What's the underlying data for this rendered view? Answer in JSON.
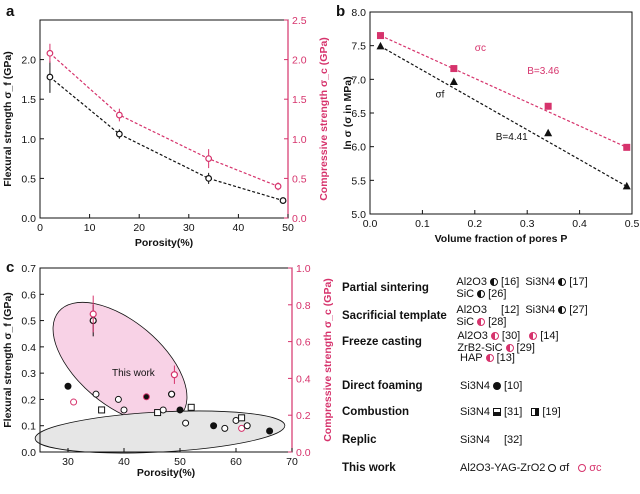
{
  "chart_data": [
    {
      "panel": "a",
      "type": "scatter",
      "xlabel": "Porosity(%)",
      "ylabel_left": "Flexural strength σ_f (GPa)",
      "ylabel_right": "Compressive strength σ_c (GPa)",
      "xlim": [
        0,
        50
      ],
      "ylim_left": [
        0,
        2.5
      ],
      "ylim_right": [
        0,
        2.5
      ],
      "xticks": [
        0,
        10,
        20,
        30,
        40,
        50
      ],
      "yticks_left": [
        0,
        0.5,
        1.0,
        1.5,
        2.0
      ],
      "yticks_right": [
        0,
        0.5,
        1.0,
        1.5,
        2.0,
        2.5
      ],
      "series": [
        {
          "name": "σ_f",
          "color": "#111111",
          "x": [
            2,
            16,
            34,
            49
          ],
          "y": [
            1.78,
            1.06,
            0.5,
            0.22
          ],
          "err": [
            0.2,
            0.06,
            0.07,
            0.02
          ],
          "fit": "dashed"
        },
        {
          "name": "σ_c",
          "color": "#d6336c",
          "x": [
            2,
            16,
            34,
            48
          ],
          "y": [
            2.08,
            1.3,
            0.75,
            0.4
          ],
          "err": [
            0.12,
            0.08,
            0.12,
            0.05
          ],
          "fit": "dashed"
        }
      ]
    },
    {
      "panel": "b",
      "type": "scatter",
      "xlabel": "Volume fraction of pores P",
      "ylabel": "ln σ (σ in MPa)",
      "xlim": [
        0,
        0.5
      ],
      "ylim": [
        5.0,
        8.0
      ],
      "xticks": [
        0.0,
        0.1,
        0.2,
        0.3,
        0.4,
        0.5
      ],
      "yticks": [
        5.0,
        5.5,
        6.0,
        6.5,
        7.0,
        7.5,
        8.0
      ],
      "series": [
        {
          "name": "σ_c",
          "color": "#d6336c",
          "marker": "square",
          "x": [
            0.02,
            0.16,
            0.34,
            0.49
          ],
          "y": [
            7.65,
            7.16,
            6.6,
            5.99
          ],
          "fit_label": "B=3.46"
        },
        {
          "name": "σ_f",
          "color": "#111111",
          "marker": "triangle",
          "x": [
            0.02,
            0.16,
            0.34,
            0.49
          ],
          "y": [
            7.49,
            6.96,
            6.2,
            5.41
          ],
          "fit_label": "B=4.41"
        }
      ],
      "labels": {
        "sigma_c": "σc",
        "sigma_f": "σf",
        "b_c": "B=3.46",
        "b_f": "B=4.41"
      }
    },
    {
      "panel": "c",
      "type": "scatter",
      "xlabel": "Porosity(%)",
      "ylabel_left": "Flexural strength σ_f (GPa)",
      "ylabel_right": "Compressive strength σ_c (GPa)",
      "xlim": [
        25,
        70
      ],
      "ylim_left": [
        0,
        0.7
      ],
      "ylim_right": [
        0,
        1.0
      ],
      "xticks": [
        30,
        40,
        50,
        60,
        70
      ],
      "yticks_left": [
        0,
        0.1,
        0.2,
        0.3,
        0.4,
        0.5,
        0.6,
        0.7
      ],
      "yticks_right": [
        0,
        0.2,
        0.4,
        0.6,
        0.8,
        1.0
      ],
      "annotation": "This work",
      "this_work_f": {
        "x": [
          34.5,
          48.5
        ],
        "y": [
          0.5,
          0.22
        ],
        "err": [
          0.06,
          0.01
        ]
      },
      "this_work_c": {
        "x": [
          34.5,
          49
        ],
        "y": [
          0.75,
          0.42
        ],
        "err": [
          0.1,
          0.05
        ]
      },
      "literature_points": [
        {
          "x": 30,
          "y": 0.25
        },
        {
          "x": 31,
          "y": 0.19
        },
        {
          "x": 35,
          "y": 0.22
        },
        {
          "x": 36,
          "y": 0.16
        },
        {
          "x": 39,
          "y": 0.2
        },
        {
          "x": 40,
          "y": 0.16
        },
        {
          "x": 44,
          "y": 0.21
        },
        {
          "x": 46,
          "y": 0.15
        },
        {
          "x": 47,
          "y": 0.16
        },
        {
          "x": 50,
          "y": 0.16
        },
        {
          "x": 51,
          "y": 0.11
        },
        {
          "x": 52,
          "y": 0.17
        },
        {
          "x": 56,
          "y": 0.1
        },
        {
          "x": 58,
          "y": 0.09
        },
        {
          "x": 60,
          "y": 0.12
        },
        {
          "x": 61,
          "y": 0.13
        },
        {
          "x": 61,
          "y": 0.09
        },
        {
          "x": 62,
          "y": 0.1
        },
        {
          "x": 66,
          "y": 0.08
        }
      ]
    }
  ],
  "panel_letters": {
    "a": "a",
    "b": "b",
    "c": "c"
  },
  "legend": [
    {
      "category": "Partial sintering",
      "items": [
        {
          "text": "Al2O3",
          "ref": "[16]",
          "symbol": "circle-half"
        },
        {
          "text": "Si3N4",
          "ref": "[17]",
          "symbol": "circle-half"
        },
        {
          "text": "SiC",
          "ref": "[26]",
          "symbol": "circle-half"
        }
      ]
    },
    {
      "category": "Sacrificial template",
      "items": [
        {
          "text": "Al2O3",
          "ref": "[12]",
          "symbol": "triangle"
        },
        {
          "text": "Si3N4",
          "ref": "[27]",
          "symbol": "circle-half"
        },
        {
          "text": "SiC",
          "ref": "[28]",
          "symbol": "circle-pink"
        }
      ]
    },
    {
      "category": "Freeze casting",
      "items": [
        {
          "text": "Al2O3",
          "ref": "[30]",
          "symbol": "circle-pink"
        },
        {
          "text": "",
          "ref": "[14]",
          "symbol": "circle-pink"
        },
        {
          "text": "ZrB2-SiC",
          "ref": "[29]",
          "symbol": "circle-pink"
        }
      ]
    },
    {
      "category": "",
      "items": [
        {
          "text": "HAP",
          "ref": "[13]",
          "symbol": "circle-pink"
        }
      ]
    },
    {
      "category": "Direct foaming",
      "items": [
        {
          "text": "Si3N4",
          "ref": "[10]",
          "symbol": "dot"
        }
      ]
    },
    {
      "category": "Combustion",
      "items": [
        {
          "text": "Si3N4",
          "ref": "[31]",
          "symbol": "square"
        },
        {
          "text": "",
          "ref": "[19]",
          "symbol": "halfsq"
        }
      ]
    },
    {
      "category": "Replic",
      "items": [
        {
          "text": "Si3N4",
          "ref": "[32]",
          "symbol": "triangle"
        }
      ]
    },
    {
      "category": "This work",
      "items": [
        {
          "text": "Al2O3-YAG-ZrO2",
          "ref": "σf",
          "symbol": "open-circle"
        },
        {
          "text": "",
          "ref": "σc",
          "symbol": "open-pink"
        }
      ]
    }
  ]
}
